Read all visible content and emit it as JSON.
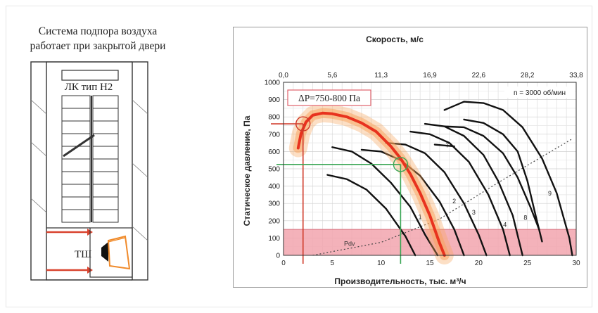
{
  "plan": {
    "caption_line1": "Система подпора воздуха",
    "caption_line2": "работает при закрытой двери",
    "stair_label": "ЛК тип Н2",
    "shaft_label": "ТШ"
  },
  "colors": {
    "highlight_curve": "#e8321e",
    "glow": "#f7a25a",
    "marker_red": "#d03a2a",
    "marker_green": "#3aa655",
    "pdv_band": "#f2a4ae",
    "fan_curves": "#111111",
    "duct_red": "#d9432e"
  },
  "chart_data": {
    "type": "line",
    "top_axis_label": "Скорость, м/с",
    "top_ticks": [
      "0,0",
      "5,6",
      "11,3",
      "16,9",
      "22,6",
      "28,2",
      "33,8"
    ],
    "xlabel": "Производительность, тыс. м³/ч",
    "ylabel": "Статическое давление, Па",
    "xlim": [
      0,
      30
    ],
    "ylim": [
      0,
      1000
    ],
    "x_ticks": [
      0,
      5,
      10,
      15,
      20,
      25,
      30
    ],
    "y_ticks": [
      0,
      100,
      200,
      300,
      400,
      500,
      600,
      700,
      800,
      900,
      1000
    ],
    "grid": true,
    "rpm_note": "n = 3000 об/мин",
    "callout": "ΔP=750-800 Па",
    "pdv_label": "Pdv",
    "pdv_band": [
      0,
      150
    ],
    "red_marker": {
      "x": 2.0,
      "y": 760
    },
    "green_marker": {
      "x": 12.0,
      "y": 525
    },
    "highlight_series": [
      [
        1.5,
        620
      ],
      [
        1.8,
        705
      ],
      [
        2.3,
        770
      ],
      [
        3.0,
        810
      ],
      [
        4.0,
        822
      ],
      [
        5.0,
        818
      ],
      [
        6.5,
        800
      ],
      [
        8.0,
        765
      ],
      [
        9.5,
        715
      ],
      [
        11.0,
        630
      ],
      [
        12.0,
        560
      ],
      [
        13.0,
        470
      ],
      [
        14.0,
        360
      ],
      [
        15.0,
        230
      ],
      [
        16.0,
        70
      ],
      [
        16.5,
        0
      ]
    ],
    "series": [
      {
        "points": [
          [
            4.5,
            465
          ],
          [
            6.5,
            440
          ],
          [
            8.5,
            380
          ],
          [
            10.5,
            270
          ],
          [
            12.5,
            110
          ],
          [
            13.5,
            0
          ]
        ]
      },
      {
        "points": [
          [
            5.0,
            625
          ],
          [
            7.0,
            600
          ],
          [
            9.0,
            530
          ],
          [
            11.0,
            420
          ],
          [
            13.0,
            280
          ],
          [
            14.5,
            120
          ],
          [
            15.8,
            0
          ]
        ]
      },
      {
        "points": [
          [
            8.0,
            610
          ],
          [
            10.0,
            600
          ],
          [
            12.0,
            550
          ],
          [
            14.0,
            460
          ],
          [
            16.0,
            310
          ],
          [
            17.5,
            150
          ],
          [
            18.5,
            0
          ]
        ]
      },
      {
        "label": "1",
        "label_at": [
          14.0,
          210
        ],
        "points": [
          [
            10.5,
            650
          ],
          [
            12.5,
            640
          ],
          [
            14.5,
            590
          ],
          [
            16.5,
            480
          ],
          [
            18.5,
            300
          ],
          [
            20.0,
            120
          ],
          [
            20.8,
            0
          ]
        ]
      },
      {
        "label": "2",
        "label_at": [
          17.5,
          300
        ],
        "points": [
          [
            13.0,
            715
          ],
          [
            15.0,
            700
          ],
          [
            17.0,
            650
          ],
          [
            19.0,
            540
          ],
          [
            21.0,
            350
          ],
          [
            22.5,
            150
          ],
          [
            23.2,
            0
          ]
        ]
      },
      {
        "label": "3",
        "label_at": [
          19.5,
          235
        ],
        "points": [
          [
            14.5,
            760
          ],
          [
            16.5,
            745
          ],
          [
            18.5,
            690
          ],
          [
            20.5,
            580
          ],
          [
            22.0,
            430
          ],
          [
            23.5,
            230
          ],
          [
            24.5,
            0
          ]
        ]
      },
      {
        "label": "4",
        "label_at": [
          22.7,
          165
        ],
        "points": [
          [
            16.5,
            745
          ],
          [
            18.5,
            740
          ],
          [
            20.5,
            690
          ],
          [
            22.5,
            590
          ],
          [
            24.0,
            450
          ],
          [
            25.3,
            280
          ],
          [
            26.2,
            150
          ]
        ]
      },
      {
        "label": "7",
        "label_at": [
          16.8,
          625
        ],
        "points": [
          [
            15.5,
            640
          ],
          [
            17.5,
            630
          ]
        ]
      },
      {
        "label": "8",
        "label_at": [
          24.8,
          205
        ],
        "points": [
          [
            18.5,
            785
          ],
          [
            20.5,
            765
          ],
          [
            22.5,
            700
          ],
          [
            24.0,
            600
          ],
          [
            25.0,
            430
          ],
          [
            25.8,
            240
          ],
          [
            26.5,
            80
          ]
        ]
      },
      {
        "label": "9",
        "label_at": [
          27.3,
          345
        ],
        "points": [
          [
            16.5,
            840
          ],
          [
            18.5,
            888
          ],
          [
            20.5,
            880
          ],
          [
            22.5,
            840
          ],
          [
            24.5,
            740
          ],
          [
            26.5,
            560
          ],
          [
            28.0,
            360
          ],
          [
            29.3,
            100
          ],
          [
            29.6,
            0
          ]
        ]
      }
    ],
    "system_line": [
      [
        3,
        0
      ],
      [
        10,
        75
      ],
      [
        16,
        210
      ],
      [
        22,
        420
      ],
      [
        29.5,
        670
      ]
    ]
  }
}
